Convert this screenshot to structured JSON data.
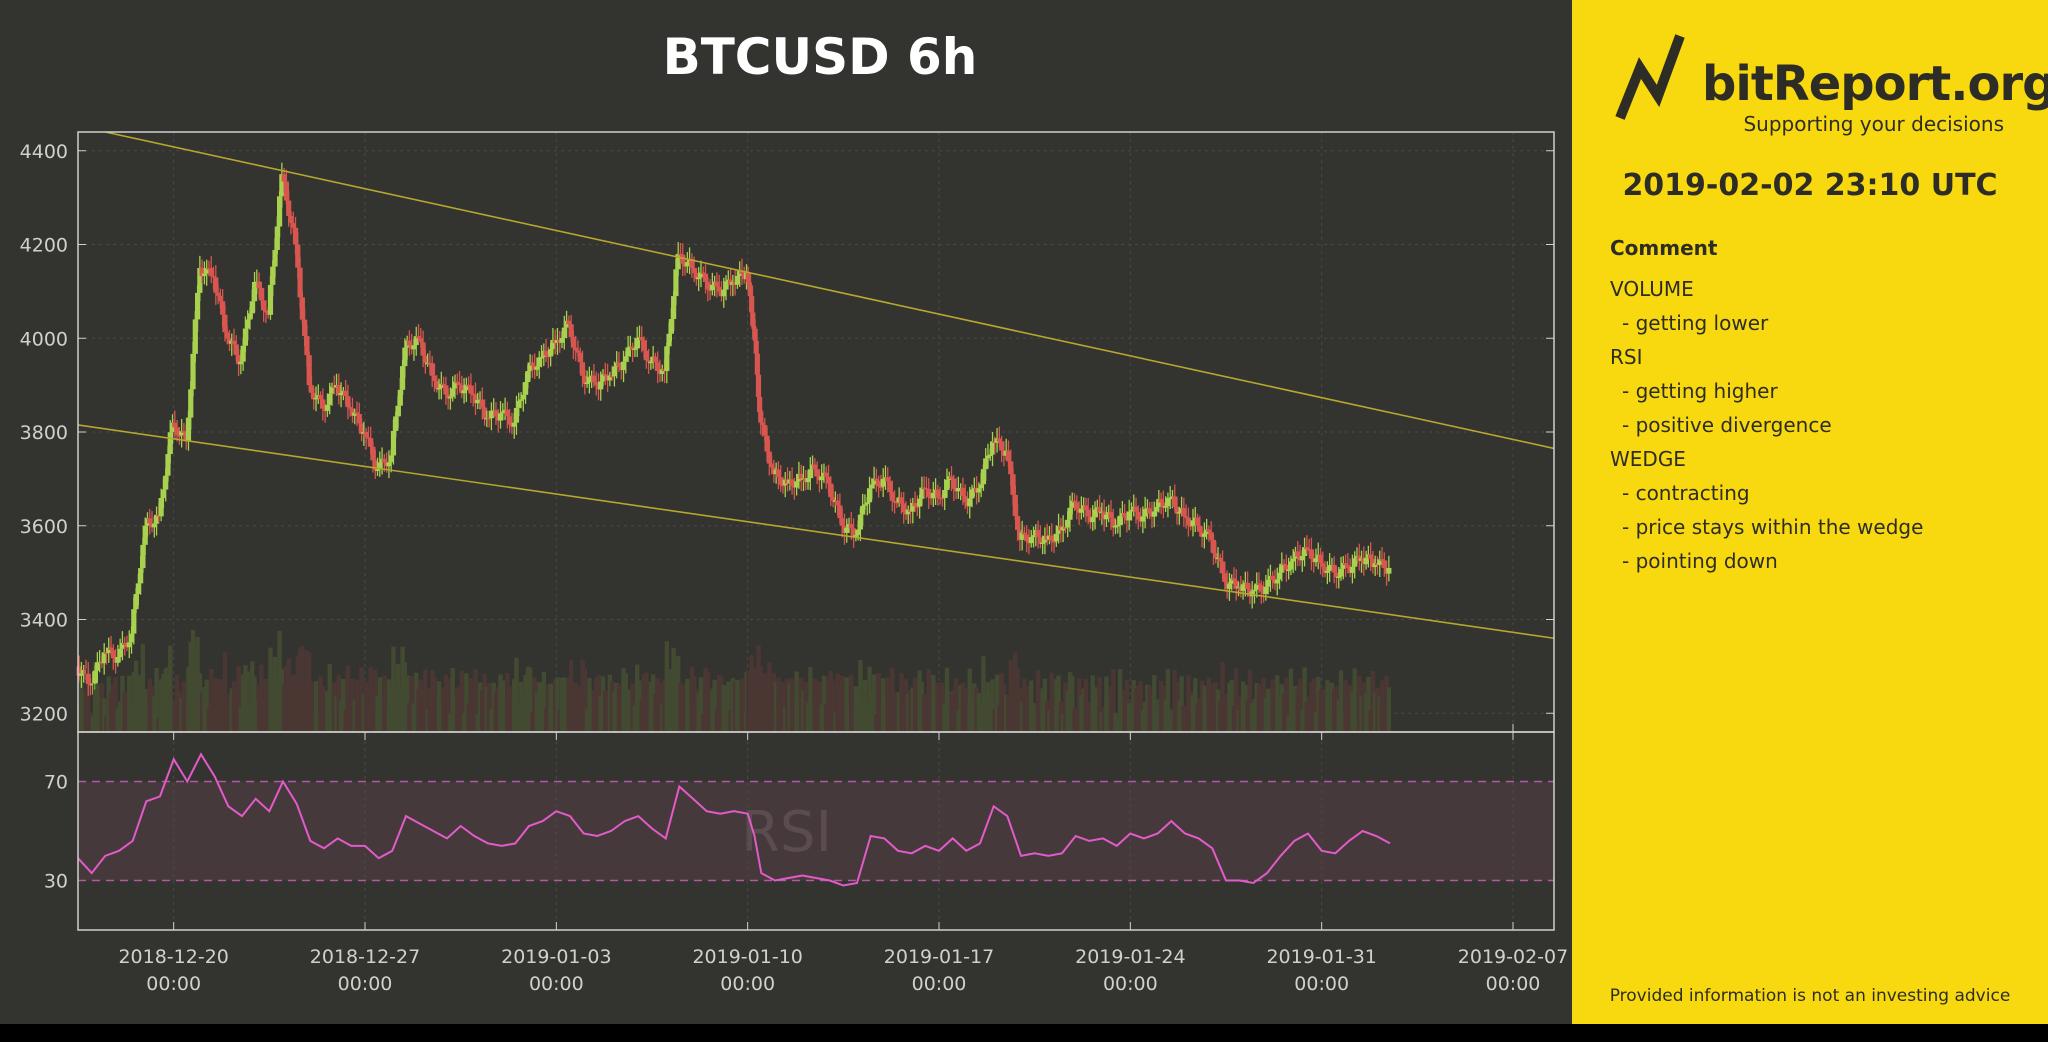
{
  "chart_data": {
    "type": "candlestick",
    "title": "BTCUSD 6h",
    "interval": "6h",
    "price_axis": {
      "ylim": [
        3160,
        4440
      ],
      "ticks": [
        3200,
        3400,
        3600,
        3800,
        4000,
        4200,
        4400
      ]
    },
    "rsi_axis": {
      "ylim": [
        10,
        90
      ],
      "ticks": [
        30,
        70
      ],
      "overbought": 70,
      "oversold": 30,
      "label": "RSI"
    },
    "x_axis": {
      "start": "2018-12-16T12:00",
      "end": "2019-02-08T12:00",
      "ticks": [
        {
          "date": "2018-12-20",
          "time": "00:00"
        },
        {
          "date": "2018-12-27",
          "time": "00:00"
        },
        {
          "date": "2019-01-03",
          "time": "00:00"
        },
        {
          "date": "2019-01-10",
          "time": "00:00"
        },
        {
          "date": "2019-01-17",
          "time": "00:00"
        },
        {
          "date": "2019-01-24",
          "time": "00:00"
        },
        {
          "date": "2019-01-31",
          "time": "00:00"
        },
        {
          "date": "2019-02-07",
          "time": "00:00"
        }
      ]
    },
    "close_series": [
      [
        "2018-12-16T12:00",
        3300
      ],
      [
        "2018-12-17T00:00",
        3260
      ],
      [
        "2018-12-17T12:00",
        3330
      ],
      [
        "2018-12-18T00:00",
        3320
      ],
      [
        "2018-12-18T12:00",
        3370
      ],
      [
        "2018-12-19T00:00",
        3600
      ],
      [
        "2018-12-19T12:00",
        3620
      ],
      [
        "2018-12-20T00:00",
        3820
      ],
      [
        "2018-12-20T12:00",
        3780
      ],
      [
        "2018-12-21T00:00",
        4150
      ],
      [
        "2018-12-21T12:00",
        4130
      ],
      [
        "2018-12-22T00:00",
        4000
      ],
      [
        "2018-12-22T12:00",
        3950
      ],
      [
        "2018-12-23T00:00",
        4120
      ],
      [
        "2018-12-23T12:00",
        4050
      ],
      [
        "2018-12-24T00:00",
        4350
      ],
      [
        "2018-12-24T12:00",
        4200
      ],
      [
        "2018-12-25T00:00",
        3900
      ],
      [
        "2018-12-25T12:00",
        3850
      ],
      [
        "2018-12-26T00:00",
        3900
      ],
      [
        "2018-12-26T12:00",
        3850
      ],
      [
        "2018-12-27T00:00",
        3800
      ],
      [
        "2018-12-27T12:00",
        3720
      ],
      [
        "2018-12-28T00:00",
        3750
      ],
      [
        "2018-12-28T12:00",
        3980
      ],
      [
        "2018-12-29T00:00",
        4000
      ],
      [
        "2018-12-29T12:00",
        3920
      ],
      [
        "2018-12-30T00:00",
        3880
      ],
      [
        "2018-12-30T12:00",
        3900
      ],
      [
        "2018-12-31T00:00",
        3880
      ],
      [
        "2018-12-31T12:00",
        3830
      ],
      [
        "2019-01-01T00:00",
        3840
      ],
      [
        "2019-01-01T12:00",
        3820
      ],
      [
        "2019-01-02T00:00",
        3930
      ],
      [
        "2019-01-02T12:00",
        3960
      ],
      [
        "2019-01-03T00:00",
        3990
      ],
      [
        "2019-01-03T12:00",
        4030
      ],
      [
        "2019-01-04T00:00",
        3920
      ],
      [
        "2019-01-04T12:00",
        3900
      ],
      [
        "2019-01-05T00:00",
        3920
      ],
      [
        "2019-01-05T12:00",
        3950
      ],
      [
        "2019-01-06T00:00",
        4000
      ],
      [
        "2019-01-06T12:00",
        3950
      ],
      [
        "2019-01-07T00:00",
        3930
      ],
      [
        "2019-01-07T12:00",
        4180
      ],
      [
        "2019-01-08T00:00",
        4150
      ],
      [
        "2019-01-08T12:00",
        4120
      ],
      [
        "2019-01-09T00:00",
        4100
      ],
      [
        "2019-01-09T12:00",
        4120
      ],
      [
        "2019-01-10T00:00",
        4140
      ],
      [
        "2019-01-10T06:00",
        4020
      ],
      [
        "2019-01-10T12:00",
        3820
      ],
      [
        "2019-01-11T00:00",
        3710
      ],
      [
        "2019-01-11T12:00",
        3690
      ],
      [
        "2019-01-12T00:00",
        3700
      ],
      [
        "2019-01-12T12:00",
        3720
      ],
      [
        "2019-01-13T00:00",
        3690
      ],
      [
        "2019-01-13T12:00",
        3600
      ],
      [
        "2019-01-14T00:00",
        3580
      ],
      [
        "2019-01-14T12:00",
        3680
      ],
      [
        "2019-01-15T00:00",
        3700
      ],
      [
        "2019-01-15T12:00",
        3650
      ],
      [
        "2019-01-16T00:00",
        3630
      ],
      [
        "2019-01-16T12:00",
        3680
      ],
      [
        "2019-01-17T00:00",
        3660
      ],
      [
        "2019-01-17T12:00",
        3700
      ],
      [
        "2019-01-18T00:00",
        3650
      ],
      [
        "2019-01-18T12:00",
        3680
      ],
      [
        "2019-01-19T00:00",
        3780
      ],
      [
        "2019-01-19T12:00",
        3760
      ],
      [
        "2019-01-20T00:00",
        3570
      ],
      [
        "2019-01-20T12:00",
        3580
      ],
      [
        "2019-01-21T00:00",
        3570
      ],
      [
        "2019-01-21T12:00",
        3590
      ],
      [
        "2019-01-22T00:00",
        3650
      ],
      [
        "2019-01-22T12:00",
        3620
      ],
      [
        "2019-01-23T00:00",
        3630
      ],
      [
        "2019-01-23T12:00",
        3600
      ],
      [
        "2019-01-24T00:00",
        3630
      ],
      [
        "2019-01-24T12:00",
        3620
      ],
      [
        "2019-01-25T00:00",
        3640
      ],
      [
        "2019-01-25T12:00",
        3660
      ],
      [
        "2019-01-26T00:00",
        3620
      ],
      [
        "2019-01-26T12:00",
        3600
      ],
      [
        "2019-01-27T00:00",
        3570
      ],
      [
        "2019-01-27T12:00",
        3480
      ],
      [
        "2019-01-28T00:00",
        3470
      ],
      [
        "2019-01-28T12:00",
        3460
      ],
      [
        "2019-01-29T00:00",
        3470
      ],
      [
        "2019-01-29T12:00",
        3500
      ],
      [
        "2019-01-30T00:00",
        3530
      ],
      [
        "2019-01-30T12:00",
        3550
      ],
      [
        "2019-01-31T00:00",
        3520
      ],
      [
        "2019-01-31T12:00",
        3500
      ],
      [
        "2019-02-01T00:00",
        3510
      ],
      [
        "2019-02-01T12:00",
        3530
      ],
      [
        "2019-02-02T00:00",
        3520
      ],
      [
        "2019-02-02T12:00",
        3510
      ]
    ],
    "rsi_series": [
      [
        "2018-12-16T12:00",
        39
      ],
      [
        "2018-12-17T00:00",
        33
      ],
      [
        "2018-12-17T12:00",
        40
      ],
      [
        "2018-12-18T00:00",
        42
      ],
      [
        "2018-12-18T12:00",
        46
      ],
      [
        "2018-12-19T00:00",
        62
      ],
      [
        "2018-12-19T12:00",
        64
      ],
      [
        "2018-12-20T00:00",
        79
      ],
      [
        "2018-12-20T12:00",
        70
      ],
      [
        "2018-12-21T00:00",
        81
      ],
      [
        "2018-12-21T12:00",
        72
      ],
      [
        "2018-12-22T00:00",
        60
      ],
      [
        "2018-12-22T12:00",
        56
      ],
      [
        "2018-12-23T00:00",
        63
      ],
      [
        "2018-12-23T12:00",
        58
      ],
      [
        "2018-12-24T00:00",
        70
      ],
      [
        "2018-12-24T12:00",
        61
      ],
      [
        "2018-12-25T00:00",
        46
      ],
      [
        "2018-12-25T12:00",
        43
      ],
      [
        "2018-12-26T00:00",
        47
      ],
      [
        "2018-12-26T12:00",
        44
      ],
      [
        "2018-12-27T00:00",
        44
      ],
      [
        "2018-12-27T12:00",
        39
      ],
      [
        "2018-12-28T00:00",
        42
      ],
      [
        "2018-12-28T12:00",
        56
      ],
      [
        "2018-12-29T00:00",
        53
      ],
      [
        "2018-12-29T12:00",
        50
      ],
      [
        "2018-12-30T00:00",
        47
      ],
      [
        "2018-12-30T12:00",
        52
      ],
      [
        "2018-12-31T00:00",
        48
      ],
      [
        "2018-12-31T12:00",
        45
      ],
      [
        "2019-01-01T00:00",
        44
      ],
      [
        "2019-01-01T12:00",
        45
      ],
      [
        "2019-01-02T00:00",
        52
      ],
      [
        "2019-01-02T12:00",
        54
      ],
      [
        "2019-01-03T00:00",
        58
      ],
      [
        "2019-01-03T12:00",
        56
      ],
      [
        "2019-01-04T00:00",
        49
      ],
      [
        "2019-01-04T12:00",
        48
      ],
      [
        "2019-01-05T00:00",
        50
      ],
      [
        "2019-01-05T12:00",
        54
      ],
      [
        "2019-01-06T00:00",
        56
      ],
      [
        "2019-01-06T12:00",
        51
      ],
      [
        "2019-01-07T00:00",
        47
      ],
      [
        "2019-01-07T12:00",
        68
      ],
      [
        "2019-01-08T00:00",
        63
      ],
      [
        "2019-01-08T12:00",
        58
      ],
      [
        "2019-01-09T00:00",
        57
      ],
      [
        "2019-01-09T12:00",
        58
      ],
      [
        "2019-01-10T00:00",
        57
      ],
      [
        "2019-01-10T06:00",
        48
      ],
      [
        "2019-01-10T12:00",
        33
      ],
      [
        "2019-01-11T00:00",
        30
      ],
      [
        "2019-01-11T12:00",
        31
      ],
      [
        "2019-01-12T00:00",
        32
      ],
      [
        "2019-01-12T12:00",
        31
      ],
      [
        "2019-01-13T00:00",
        30
      ],
      [
        "2019-01-13T12:00",
        28
      ],
      [
        "2019-01-14T00:00",
        29
      ],
      [
        "2019-01-14T12:00",
        48
      ],
      [
        "2019-01-15T00:00",
        47
      ],
      [
        "2019-01-15T12:00",
        42
      ],
      [
        "2019-01-16T00:00",
        41
      ],
      [
        "2019-01-16T12:00",
        44
      ],
      [
        "2019-01-17T00:00",
        42
      ],
      [
        "2019-01-17T12:00",
        47
      ],
      [
        "2019-01-18T00:00",
        42
      ],
      [
        "2019-01-18T12:00",
        45
      ],
      [
        "2019-01-19T00:00",
        60
      ],
      [
        "2019-01-19T12:00",
        56
      ],
      [
        "2019-01-20T00:00",
        40
      ],
      [
        "2019-01-20T12:00",
        41
      ],
      [
        "2019-01-21T00:00",
        40
      ],
      [
        "2019-01-21T12:00",
        41
      ],
      [
        "2019-01-22T00:00",
        48
      ],
      [
        "2019-01-22T12:00",
        46
      ],
      [
        "2019-01-23T00:00",
        47
      ],
      [
        "2019-01-23T12:00",
        44
      ],
      [
        "2019-01-24T00:00",
        49
      ],
      [
        "2019-01-24T12:00",
        47
      ],
      [
        "2019-01-25T00:00",
        49
      ],
      [
        "2019-01-25T12:00",
        54
      ],
      [
        "2019-01-26T00:00",
        49
      ],
      [
        "2019-01-26T12:00",
        47
      ],
      [
        "2019-01-27T00:00",
        43
      ],
      [
        "2019-01-27T12:00",
        30
      ],
      [
        "2019-01-28T00:00",
        30
      ],
      [
        "2019-01-28T12:00",
        29
      ],
      [
        "2019-01-29T00:00",
        33
      ],
      [
        "2019-01-29T12:00",
        40
      ],
      [
        "2019-01-30T00:00",
        46
      ],
      [
        "2019-01-30T12:00",
        49
      ],
      [
        "2019-01-31T00:00",
        42
      ],
      [
        "2019-01-31T12:00",
        41
      ],
      [
        "2019-02-01T00:00",
        46
      ],
      [
        "2019-02-01T12:00",
        50
      ],
      [
        "2019-02-02T00:00",
        48
      ],
      [
        "2019-02-02T12:00",
        45
      ]
    ],
    "wedge_lines": [
      {
        "name": "upper",
        "from": [
          "2018-12-17T12:00",
          4440
        ],
        "to": [
          "2019-02-08T12:00",
          3765
        ]
      },
      {
        "name": "lower",
        "from": [
          "2018-12-16T12:00",
          3815
        ],
        "to": [
          "2019-02-08T12:00",
          3360
        ]
      }
    ],
    "colors": {
      "up": "#a7d14e",
      "down": "#d85650",
      "rsi_line": "#e25bc8",
      "rsi_band": "#45393c",
      "wedge": "#b5a72f",
      "grid": "#4a4a45",
      "axis": "#d0d0cc",
      "volume_up": "#424a31",
      "volume_down": "#4a3733"
    }
  },
  "sidebar": {
    "brand": "bitReport.org",
    "tagline": "Supporting your decisions",
    "timestamp": "2019-02-02 23:10 UTC",
    "comment_heading": "Comment",
    "comment_lines": [
      {
        "text": "VOLUME",
        "indent": false
      },
      {
        "text": "- getting lower",
        "indent": true
      },
      {
        "text": "RSI",
        "indent": false
      },
      {
        "text": "- getting higher",
        "indent": true
      },
      {
        "text": "- positive divergence",
        "indent": true
      },
      {
        "text": "WEDGE",
        "indent": false
      },
      {
        "text": "- contracting",
        "indent": true
      },
      {
        "text": "- price stays within the wedge",
        "indent": true
      },
      {
        "text": "- pointing down",
        "indent": true
      }
    ],
    "disclaimer": "Provided information is not an investing advice"
  }
}
